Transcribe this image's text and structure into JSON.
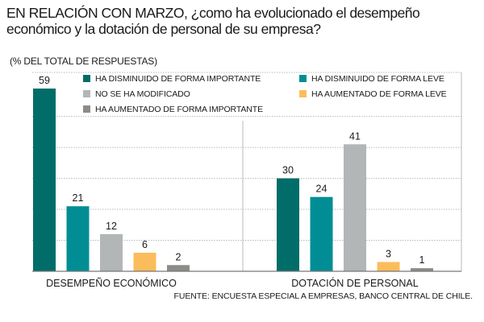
{
  "title": "EN RELACIÓN CON MARZO, ¿como ha evolucionado el desempeño económico y la dotación de personal de su empresa?",
  "subtitle": "(% DEL TOTAL DE RESPUESTAS)",
  "source": "FUENTE: ENCUESTA ESPECIAL A EMPRESAS, BANCO CENTRAL DE CHILE.",
  "colors": {
    "ha_disminuido_importante": "#006d68",
    "ha_disminuido_leve": "#008e94",
    "no_modificado": "#b2b6b7",
    "ha_aumentado_leve": "#fbbd5b",
    "ha_aumentado_importante": "#8d8b87",
    "grid": "#b8b8b8",
    "axis": "#777777"
  },
  "chart_data": {
    "type": "bar",
    "title": "EN RELACIÓN CON MARZO, ¿como ha evolucionado el desempeño económico y la dotación de personal de su empresa?",
    "ylabel": "% DEL TOTAL DE RESPUESTAS",
    "ylim": [
      0,
      60
    ],
    "grid": true,
    "legend_position": "top",
    "categories": [
      "DESEMPEÑO ECONÓMICO",
      "DOTACIÓN DE PERSONAL"
    ],
    "series": [
      {
        "name": "HA DISMINUIDO DE FORMA IMPORTANTE",
        "color_key": "ha_disminuido_importante",
        "values": [
          59,
          30
        ]
      },
      {
        "name": "HA DISMINUIDO DE FORMA LEVE",
        "color_key": "ha_disminuido_leve",
        "values": [
          21,
          24
        ]
      },
      {
        "name": "NO SE HA MODIFICADO",
        "color_key": "no_modificado",
        "values": [
          12,
          41
        ]
      },
      {
        "name": "HA AUMENTADO DE FORMA LEVE",
        "color_key": "ha_aumentado_leve",
        "values": [
          6,
          3
        ]
      },
      {
        "name": "HA AUMENTADO DE FORMA IMPORTANTE",
        "color_key": "ha_aumentado_importante",
        "values": [
          2,
          1
        ]
      }
    ]
  }
}
